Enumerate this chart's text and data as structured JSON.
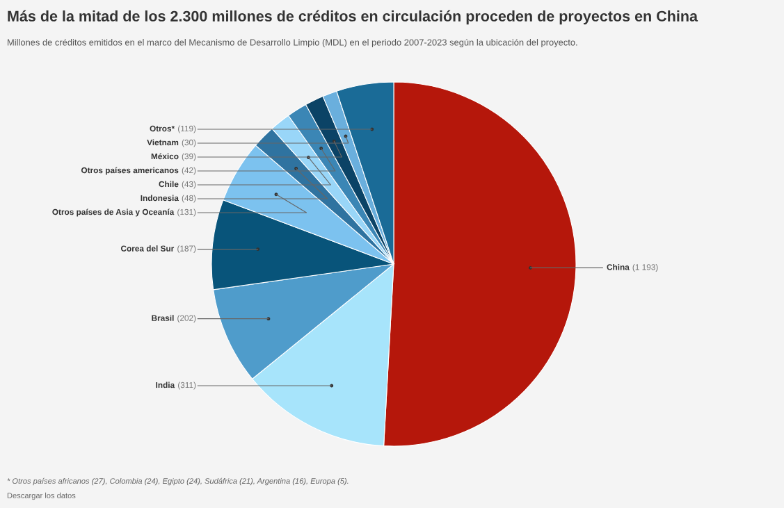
{
  "chart_data": {
    "type": "pie",
    "title": "Más de la mitad de los 2.300 millones de créditos en circulación proceden de proyectos en China",
    "subtitle": "Millones de créditos emitidos en el marco del Mecanismo de Desarrollo Limpio (MDL) en el periodo 2007-2023 según la ubicación del proyecto.",
    "categories": [
      "China",
      "India",
      "Brasil",
      "Corea del Sur",
      "Otros países de Asia y Oceanía",
      "Indonesia",
      "Chile",
      "Otros países americanos",
      "México",
      "Vietnam",
      "Otros*"
    ],
    "values": [
      1193,
      311,
      202,
      187,
      131,
      48,
      43,
      42,
      39,
      30,
      119
    ],
    "value_labels": [
      "(1 193)",
      "(311)",
      "(202)",
      "(187)",
      "(131)",
      "(48)",
      "(43)",
      "(42)",
      "(39)",
      "(30)",
      "(119)"
    ],
    "colors": [
      "#b5170b",
      "#a7e4fb",
      "#4f9ccb",
      "#08547a",
      "#7cc2ef",
      "#2f73a0",
      "#99d6f8",
      "#3b86b5",
      "#0b4366",
      "#6aafdd",
      "#1a6b97"
    ],
    "annotations": [
      "* Otros países africanos (27), Colombia (24), Egipto (24), Sudáfrica (21), Argentina (16), Europa (5).",
      "Descargar los datos"
    ],
    "legend": false
  }
}
